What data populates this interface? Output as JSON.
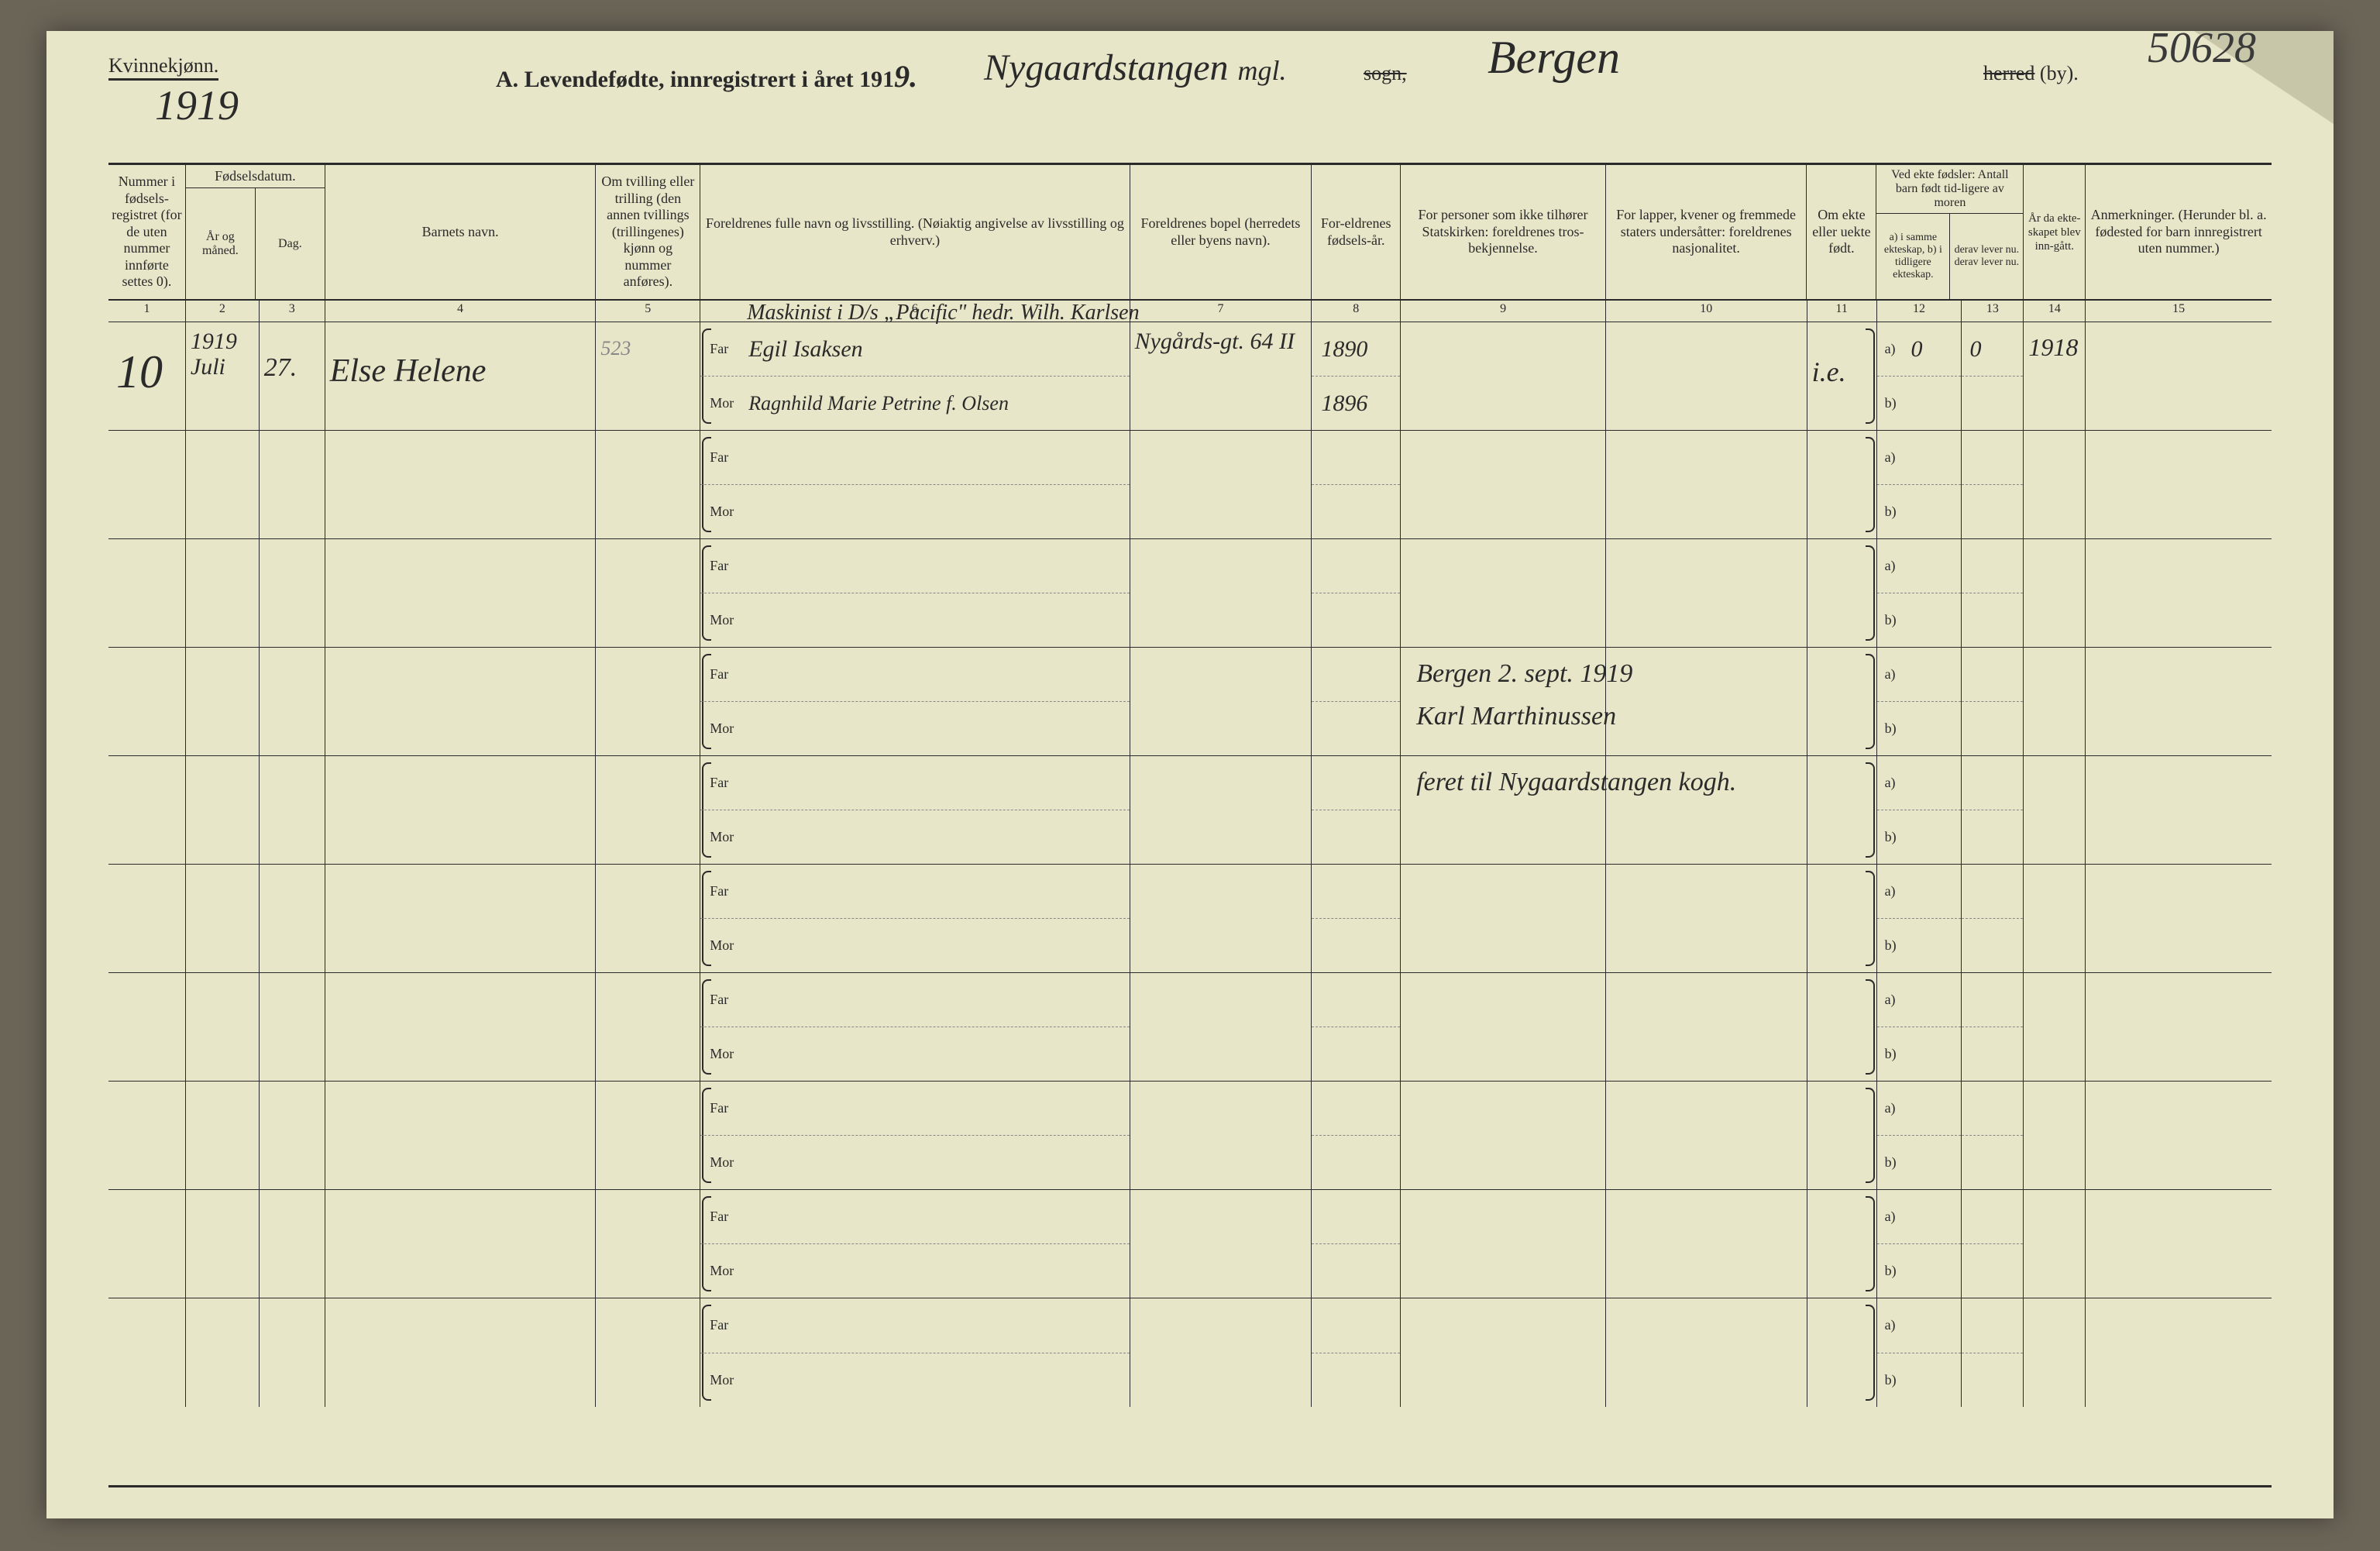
{
  "stamp_number": "50628",
  "header": {
    "gender_label": "Kvinnekjønn.",
    "year_written": "1919",
    "title_prefix": "A.  Levendefødte, innregistrert i året 191",
    "title_year_digit": "9.",
    "parish_written": "Nygaardstangen",
    "mgl_written": "mgl.",
    "sogn_label": "sogn,",
    "city_written": "Bergen",
    "herred_label": "herred",
    "by_label": "(by)."
  },
  "columns": {
    "c1": "Nummer i fødsels-registret (for de uten nummer innførte settes 0).",
    "c2_top": "Fødselsdatum.",
    "c2": "År og måned.",
    "c3": "Dag.",
    "c4": "Barnets navn.",
    "c5": "Om tvilling eller trilling (den annen tvillings (trillingenes) kjønn og nummer anføres).",
    "c6": "Foreldrenes fulle navn og livsstilling. (Nøiaktig angivelse av livsstilling og erhverv.)",
    "c7": "Foreldrenes bopel (herredets eller byens navn).",
    "c8": "For-eldrenes fødsels-år.",
    "c9": "For personer som ikke tilhører Statskirken: foreldrenes tros-bekjennelse.",
    "c10": "For lapper, kvener og fremmede staters undersåtter: foreldrenes nasjonalitet.",
    "c11": "Om ekte eller uekte født.",
    "c12_top": "Ved ekte fødsler: Antall barn født tid-ligere av moren",
    "c12": "a) i samme ekteskap, b) i tidligere ekteskap.",
    "c13": "derav lever nu. derav lever nu.",
    "c14": "År da ekte-skapet blev inn-gått.",
    "c15": "Anmerkninger. (Herunder bl. a. fødested for barn innregistrert uten nummer.)"
  },
  "colnums": [
    "1",
    "2",
    "3",
    "4",
    "5",
    "6",
    "7",
    "8",
    "9",
    "10",
    "11",
    "12",
    "13",
    "14",
    "15"
  ],
  "far_label": "Far",
  "mor_label": "Mor",
  "a_label": "a)",
  "b_label": "b)",
  "rows": [
    {
      "num": "10",
      "year_month": "1919 Juli",
      "day": "27.",
      "name": "Else Helene",
      "twin": "523",
      "occupation_top": "Maskinist i D/s „Pacific\" hedr. Wilh. Karlsen",
      "far": "Egil Isaksen",
      "mor": "Ragnhild Marie Petrine f. Olsen",
      "residence": "Nygårds-gt. 64 II",
      "far_year": "1890",
      "mor_year": "1896",
      "ekte": "i.e.",
      "a_val": "0",
      "a_lever": "0",
      "marriage_year": "1918"
    },
    {},
    {},
    {
      "note_line1": "Bergen 2. sept. 1919",
      "note_line2": "Karl Marthinussen"
    },
    {
      "note_line1": "feret til Nygaardstangen kogh."
    },
    {},
    {},
    {},
    {},
    {}
  ],
  "colors": {
    "paper": "#e8e6c8",
    "ink": "#2a2a2a",
    "border": "#2a2a2a",
    "background": "#6b6558"
  }
}
